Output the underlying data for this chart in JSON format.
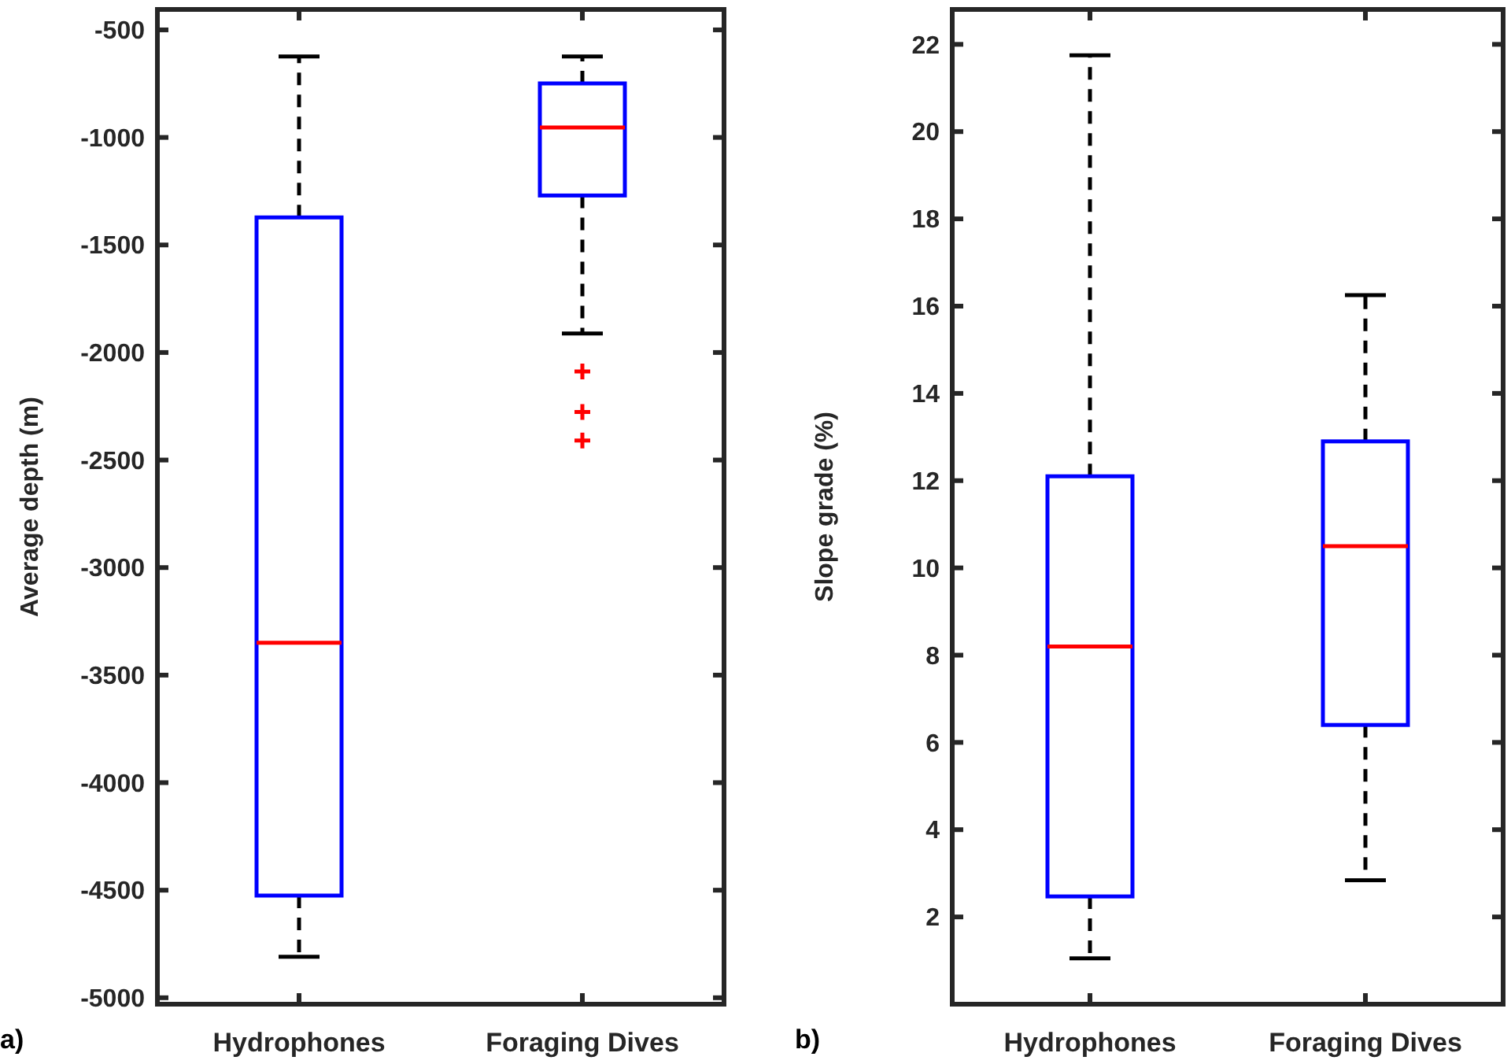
{
  "chart_data": [
    {
      "type": "box",
      "categories": [
        "Hydrophones",
        "Foraging Dives"
      ],
      "ylabel": "Average depth (m)",
      "color": "#0000ff",
      "ylim": [
        -5030,
        -405
      ],
      "yticks": [
        -5000,
        -4500,
        -4000,
        -3500,
        -3000,
        -2500,
        -2000,
        -1500,
        -1000,
        -500
      ],
      "grid": false,
      "annotations": [
        "a)"
      ],
      "boxes": [
        {
          "low": -4810,
          "q1": -4525,
          "median": -3350,
          "q3": -1372,
          "high": -624
        },
        {
          "low": -1912,
          "q1": -1270,
          "median": -954,
          "q3": -749,
          "high": -624,
          "outliers": [
            -2088,
            -2277,
            -2409
          ]
        }
      ]
    },
    {
      "type": "box",
      "categories": [
        "Hydrophones",
        "Foraging Dives"
      ],
      "ylabel": "Slope grade (%)",
      "color": "#0000ff",
      "ylim": [
        0,
        22.8
      ],
      "yticks": [
        2,
        4,
        6,
        8,
        10,
        12,
        14,
        16,
        18,
        20,
        22
      ],
      "grid": false,
      "annotations": [
        "b)"
      ],
      "boxes": [
        {
          "low": 1.05,
          "q1": 2.47,
          "median": 8.2,
          "q3": 12.1,
          "high": 21.75
        },
        {
          "low": 2.84,
          "q1": 6.4,
          "median": 10.5,
          "q3": 12.9,
          "high": 16.25
        }
      ]
    }
  ]
}
